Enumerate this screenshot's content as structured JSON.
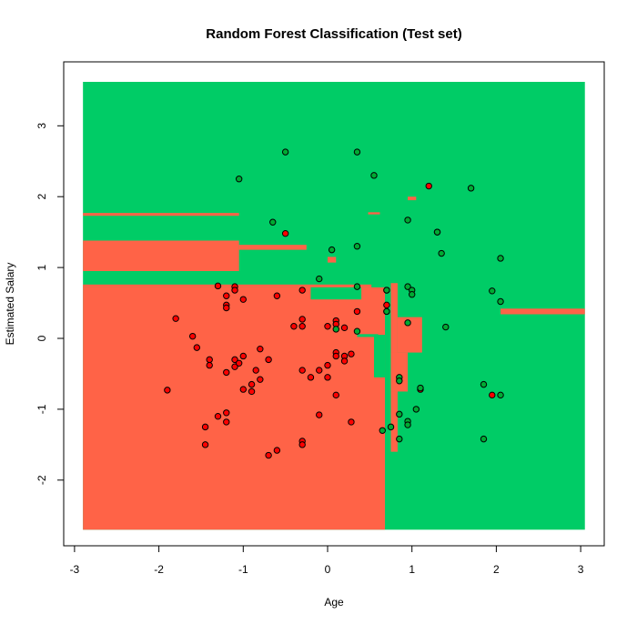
{
  "chart_data": {
    "type": "scatter",
    "title": "Random Forest Classification (Test set)",
    "xlabel": "Age",
    "ylabel": "Estimated Salary",
    "xlim": [
      -3.2,
      3.3
    ],
    "ylim": [
      -2.95,
      3.9
    ],
    "x_ticks": [
      -3,
      -2,
      -1,
      0,
      1,
      2,
      3
    ],
    "y_ticks": [
      -2,
      -1,
      0,
      1,
      2,
      3
    ],
    "x_tick_labels": [
      "-3",
      "-2",
      "-1",
      "0",
      "1",
      "2",
      "3"
    ],
    "y_tick_labels": [
      "-2",
      "-1",
      "0",
      "1",
      "2",
      "3"
    ],
    "grid": false,
    "background_region": {
      "x_range": [
        -2.9,
        3.05
      ],
      "y_range": [
        -2.7,
        3.62
      ],
      "color": "#00CC66"
    },
    "decision_regions": [
      {
        "class": "0",
        "color": "#FF6347",
        "x": [
          -2.9,
          0.68
        ],
        "y": [
          -2.7,
          0.72
        ]
      },
      {
        "class": "0",
        "color": "#FF6347",
        "x": [
          -2.9,
          0.52
        ],
        "y": [
          0.72,
          0.76
        ]
      },
      {
        "class": "0",
        "color": "#FF6347",
        "x": [
          -2.9,
          -1.05
        ],
        "y": [
          0.95,
          1.38
        ]
      },
      {
        "class": "0",
        "color": "#FF6347",
        "x": [
          -1.05,
          -0.25
        ],
        "y": [
          1.25,
          1.32
        ]
      },
      {
        "class": "0",
        "color": "#FF6347",
        "x": [
          -2.9,
          -1.05
        ],
        "y": [
          1.73,
          1.77
        ]
      },
      {
        "class": "0",
        "color": "#FF6347",
        "x": [
          0.0,
          0.1
        ],
        "y": [
          1.07,
          1.15
        ]
      },
      {
        "class": "0",
        "color": "#FF6347",
        "x": [
          0.48,
          0.62
        ],
        "y": [
          1.75,
          1.78
        ]
      },
      {
        "class": "0",
        "color": "#FF6347",
        "x": [
          0.95,
          1.05
        ],
        "y": [
          1.95,
          2.0
        ]
      },
      {
        "class": "0",
        "color": "#FF6347",
        "x": [
          0.75,
          0.83
        ],
        "y": [
          -1.6,
          0.78
        ]
      },
      {
        "class": "0",
        "color": "#FF6347",
        "x": [
          0.83,
          1.12
        ],
        "y": [
          -0.2,
          0.3
        ]
      },
      {
        "class": "0",
        "color": "#FF6347",
        "x": [
          0.75,
          0.95
        ],
        "y": [
          -0.75,
          -0.2
        ]
      },
      {
        "class": "0",
        "color": "#FF6347",
        "x": [
          2.05,
          3.05
        ],
        "y": [
          0.34,
          0.42
        ]
      },
      {
        "class": "1",
        "color": "#00CC66",
        "x": [
          -0.2,
          0.4
        ],
        "y": [
          0.55,
          0.72
        ]
      },
      {
        "class": "1",
        "color": "#00CC66",
        "x": [
          0.55,
          0.68
        ],
        "y": [
          -0.55,
          0.05
        ]
      },
      {
        "class": "1",
        "color": "#00CC66",
        "x": [
          0.35,
          0.6
        ],
        "y": [
          0.02,
          0.06
        ]
      }
    ],
    "series": [
      {
        "color": "#FF0000",
        "points": [
          [
            -1.9,
            -0.73
          ],
          [
            -1.8,
            0.28
          ],
          [
            -1.6,
            0.03
          ],
          [
            -1.55,
            -0.13
          ],
          [
            -1.4,
            -0.3
          ],
          [
            -1.4,
            -0.38
          ],
          [
            -1.45,
            -1.25
          ],
          [
            -1.45,
            -1.5
          ],
          [
            -1.3,
            0.74
          ],
          [
            -1.3,
            -1.1
          ],
          [
            -1.2,
            0.6
          ],
          [
            -1.2,
            0.47
          ],
          [
            -1.2,
            0.43
          ],
          [
            -1.2,
            -0.48
          ],
          [
            -1.2,
            -1.05
          ],
          [
            -1.2,
            -1.18
          ],
          [
            -1.1,
            0.73
          ],
          [
            -1.1,
            0.68
          ],
          [
            -1.1,
            -0.3
          ],
          [
            -1.1,
            -0.4
          ],
          [
            -1.05,
            -0.35
          ],
          [
            -1.0,
            0.55
          ],
          [
            -1.0,
            -0.25
          ],
          [
            -1.0,
            -0.72
          ],
          [
            -0.9,
            -0.65
          ],
          [
            -0.9,
            -0.75
          ],
          [
            -0.85,
            -0.45
          ],
          [
            -0.8,
            -0.15
          ],
          [
            -0.8,
            -0.58
          ],
          [
            -0.7,
            -0.3
          ],
          [
            -0.7,
            -1.65
          ],
          [
            -0.6,
            0.6
          ],
          [
            -0.6,
            -1.58
          ],
          [
            -0.5,
            1.48
          ],
          [
            -0.4,
            0.17
          ],
          [
            -0.3,
            0.68
          ],
          [
            -0.3,
            0.27
          ],
          [
            -0.3,
            0.17
          ],
          [
            -0.3,
            -0.45
          ],
          [
            -0.3,
            -1.45
          ],
          [
            -0.3,
            -1.5
          ],
          [
            -0.2,
            -0.55
          ],
          [
            -0.1,
            -0.45
          ],
          [
            -0.1,
            -1.08
          ],
          [
            0.0,
            0.17
          ],
          [
            0.0,
            -0.38
          ],
          [
            0.0,
            -0.55
          ],
          [
            0.1,
            0.25
          ],
          [
            0.1,
            0.2
          ],
          [
            0.1,
            -0.2
          ],
          [
            0.1,
            -0.25
          ],
          [
            0.1,
            -0.8
          ],
          [
            0.2,
            0.15
          ],
          [
            0.2,
            -0.25
          ],
          [
            0.2,
            -0.32
          ],
          [
            0.28,
            -0.22
          ],
          [
            0.28,
            -1.18
          ],
          [
            0.35,
            0.38
          ],
          [
            0.7,
            0.38
          ],
          [
            0.7,
            0.47
          ],
          [
            0.7,
            0.68
          ],
          [
            1.1,
            -0.72
          ],
          [
            1.2,
            2.15
          ],
          [
            1.3,
            1.5
          ],
          [
            1.95,
            -0.8
          ]
        ]
      },
      {
        "color": "#00AA33",
        "points": [
          [
            -1.05,
            2.25
          ],
          [
            -0.65,
            1.64
          ],
          [
            -0.5,
            2.63
          ],
          [
            0.05,
            1.25
          ],
          [
            0.35,
            2.63
          ],
          [
            0.35,
            1.3
          ],
          [
            -0.1,
            0.84
          ],
          [
            0.35,
            0.73
          ],
          [
            0.1,
            0.13
          ],
          [
            0.35,
            0.1
          ],
          [
            0.55,
            2.3
          ],
          [
            0.7,
            0.68
          ],
          [
            0.7,
            0.38
          ],
          [
            0.65,
            -1.3
          ],
          [
            0.75,
            -1.25
          ],
          [
            0.85,
            -0.55
          ],
          [
            0.85,
            -0.6
          ],
          [
            0.85,
            -1.07
          ],
          [
            0.85,
            -1.42
          ],
          [
            0.95,
            1.67
          ],
          [
            0.95,
            0.73
          ],
          [
            0.95,
            0.22
          ],
          [
            0.95,
            -1.17
          ],
          [
            0.95,
            -1.22
          ],
          [
            1.0,
            0.68
          ],
          [
            1.0,
            0.62
          ],
          [
            1.05,
            -1.0
          ],
          [
            1.1,
            -0.7
          ],
          [
            1.3,
            1.5
          ],
          [
            1.35,
            1.2
          ],
          [
            1.4,
            0.16
          ],
          [
            1.7,
            2.12
          ],
          [
            1.85,
            -0.65
          ],
          [
            1.85,
            -1.42
          ],
          [
            1.95,
            0.67
          ],
          [
            2.05,
            1.13
          ],
          [
            2.05,
            0.52
          ],
          [
            2.05,
            -0.8
          ]
        ]
      }
    ]
  }
}
